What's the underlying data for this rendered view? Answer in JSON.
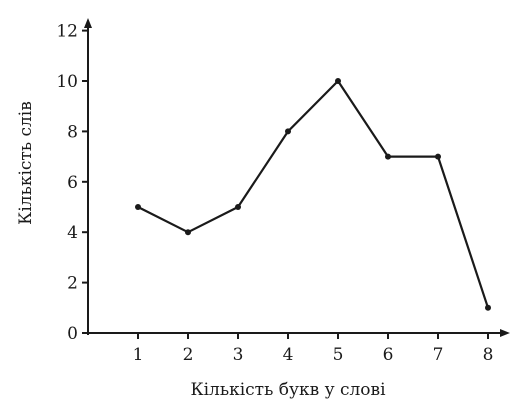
{
  "chart_data": {
    "type": "line",
    "title": "",
    "xlabel": "Кількість букв у слові",
    "ylabel": "Кількість слів",
    "x": [
      1,
      2,
      3,
      4,
      5,
      6,
      7,
      8
    ],
    "values": [
      5,
      4,
      5,
      8,
      10,
      7,
      7,
      1
    ],
    "x_ticks": [
      "1",
      "2",
      "3",
      "4",
      "5",
      "6",
      "7",
      "8"
    ],
    "y_ticks": [
      "0",
      "2",
      "4",
      "6",
      "8",
      "10",
      "12"
    ],
    "xlim": [
      0,
      8.5
    ],
    "ylim": [
      0,
      12
    ],
    "grid": false,
    "legend": "none",
    "colors": {
      "line": "#1a1a1a",
      "axis": "#1a1a1a",
      "background": "#ffffff"
    }
  }
}
